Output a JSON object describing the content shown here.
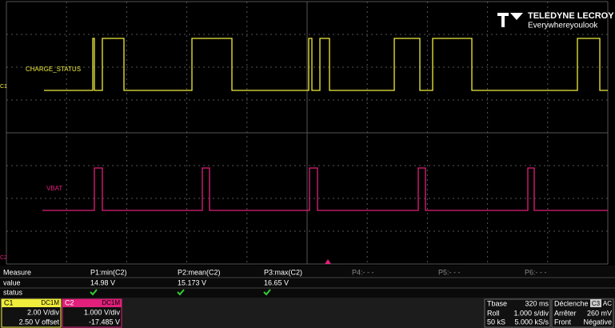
{
  "screen": {
    "logo": {
      "brand": "TELEDYNE LECROY",
      "tagline": "Everywhereyoulook"
    },
    "traces": {
      "c1_label": "CHARGE_STATUS",
      "c2_label": "VBAT",
      "c1_marker": "C1",
      "c2_marker": "C2"
    },
    "measure": {
      "headers": [
        "Measure",
        "P1:min(C2)",
        "P2:mean(C2)",
        "P3:max(C2)",
        "P4:- - -",
        "P5:- - -",
        "P6:- - -"
      ],
      "value_row": [
        "value",
        "14.98 V",
        "15.173 V",
        "16.65 V"
      ],
      "status_row": [
        "status"
      ]
    },
    "channels": [
      {
        "name": "C1",
        "coupling": "DC1M",
        "scale": "2.00 V/div",
        "offset": "2.50 V offset"
      },
      {
        "name": "C2",
        "coupling": "DC1M",
        "scale": "1.000 V/div",
        "offset": "-17.485 V"
      }
    ],
    "timebase": {
      "title": "Tbase",
      "delay": "320 ms",
      "mode": "Roll",
      "scale": "1.000 s/div",
      "samples": "50 kS",
      "rate": "5.000 kS/s"
    },
    "trigger": {
      "title": "Déclenche",
      "source": "C3",
      "coupling": "AC",
      "mode": "Arrêter",
      "level": "260 mV",
      "edge": "Front",
      "slope": "Négative"
    }
  }
}
